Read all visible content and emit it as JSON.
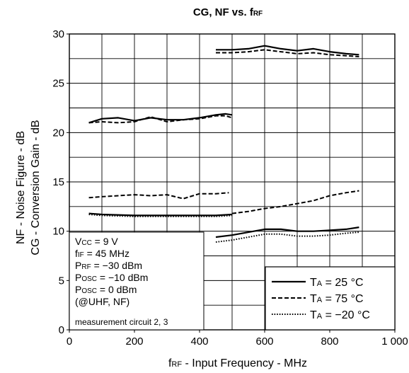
{
  "chart_data": {
    "type": "line",
    "title": "CG, NF vs. fRF",
    "title_parts": {
      "main": "CG, NF vs. f",
      "sub": "RF"
    },
    "xlabel_parts": {
      "pre": "f",
      "sub": "RF",
      "post": " -  Input Frequency  - MHz"
    },
    "ylabel_line1": "NF -  Noise Figure - dB",
    "ylabel_line2": "CG -  Conversion Gain - dB",
    "xlim": [
      0,
      1000
    ],
    "ylim": [
      0,
      30
    ],
    "x_ticks": [
      0,
      200,
      400,
      600,
      800,
      1000
    ],
    "x_tick_labels": [
      "0",
      "200",
      "400",
      "600",
      "800",
      "1 000"
    ],
    "y_ticks": [
      0,
      5,
      10,
      15,
      20,
      25,
      30
    ],
    "y_tick_labels": [
      "0",
      "5",
      "10",
      "15",
      "20",
      "25",
      "30"
    ],
    "grid": {
      "x_step": 100,
      "y_step": 2.5,
      "major_y_step": 5
    },
    "conditions": [
      {
        "pre": "V",
        "sub": "CC",
        "post": " = 9 V"
      },
      {
        "pre": "f",
        "sub": "IF",
        "post": " = 45 MHz"
      },
      {
        "pre": "P",
        "sub": "RF",
        "post": " = −30 dBm"
      },
      {
        "pre": "P",
        "sub": "OSC",
        "post": " = −10 dBm"
      },
      {
        "pre": "P",
        "sub": "OSC",
        "post": " = 0 dBm"
      },
      {
        "pre": "(@UHF, NF)",
        "sub": "",
        "post": ""
      }
    ],
    "conditions_footer": "measurement circuit 2, 3",
    "legend": {
      "placement": "bottom-right",
      "entries": [
        {
          "pre": "T",
          "sub": "A",
          "post": " = 25 °C",
          "style": "solid"
        },
        {
          "pre": "T",
          "sub": "A",
          "post": " = 75 °C",
          "style": "dashed"
        },
        {
          "pre": "T",
          "sub": "A",
          "post": " = −20 °C",
          "style": "dotted"
        }
      ]
    },
    "series": [
      {
        "group": "CG VHF",
        "style": "solid",
        "x": [
          60,
          100,
          150,
          200,
          250,
          300,
          350,
          400,
          450,
          480,
          500
        ],
        "y": [
          21.0,
          21.4,
          21.5,
          21.2,
          21.5,
          21.3,
          21.3,
          21.5,
          21.8,
          21.9,
          21.8
        ]
      },
      {
        "group": "CG VHF",
        "style": "dashed",
        "x": [
          60,
          100,
          150,
          200,
          250,
          300,
          350,
          400,
          450,
          480,
          500
        ],
        "y": [
          21.0,
          21.1,
          21.0,
          21.1,
          21.6,
          21.1,
          21.3,
          21.4,
          21.7,
          21.7,
          21.5
        ]
      },
      {
        "group": "CG UHF",
        "style": "solid",
        "x": [
          450,
          500,
          550,
          600,
          650,
          700,
          750,
          800,
          850,
          890
        ],
        "y": [
          28.4,
          28.4,
          28.5,
          28.8,
          28.5,
          28.3,
          28.5,
          28.2,
          28.0,
          27.9
        ]
      },
      {
        "group": "CG UHF",
        "style": "dashed",
        "x": [
          450,
          500,
          550,
          600,
          650,
          700,
          750,
          800,
          850,
          890
        ],
        "y": [
          28.1,
          28.1,
          28.2,
          28.4,
          28.2,
          28.0,
          28.1,
          27.9,
          27.8,
          27.7
        ]
      },
      {
        "group": "NF VHF",
        "style": "solid",
        "x": [
          60,
          100,
          200,
          300,
          400,
          450,
          500
        ],
        "y": [
          11.8,
          11.7,
          11.6,
          11.6,
          11.6,
          11.6,
          11.7
        ]
      },
      {
        "group": "NF VHF",
        "style": "dashed",
        "x": [
          60,
          100,
          200,
          250,
          300,
          350,
          400,
          450,
          490
        ],
        "y": [
          13.4,
          13.5,
          13.7,
          13.6,
          13.7,
          13.3,
          13.8,
          13.8,
          13.9
        ]
      },
      {
        "group": "NF VHF",
        "style": "dotted",
        "x": [
          60,
          100,
          200,
          300,
          400,
          450,
          500
        ],
        "y": [
          11.7,
          11.6,
          11.5,
          11.5,
          11.5,
          11.5,
          11.6
        ]
      },
      {
        "group": "NF VHF",
        "style": "dashed",
        "x": [
          500,
          550,
          600,
          650,
          700,
          750,
          800,
          850,
          890
        ],
        "y": [
          11.8,
          12.0,
          12.3,
          12.5,
          12.8,
          13.1,
          13.6,
          13.9,
          14.1
        ]
      },
      {
        "group": "NF UHF",
        "style": "solid",
        "x": [
          450,
          500,
          550,
          600,
          650,
          700,
          750,
          800,
          850,
          890
        ],
        "y": [
          9.4,
          9.6,
          9.9,
          10.2,
          10.2,
          10.0,
          10.0,
          10.1,
          10.2,
          10.4
        ]
      },
      {
        "group": "NF UHF",
        "style": "dotted",
        "x": [
          450,
          500,
          550,
          600,
          650,
          700,
          750,
          800,
          850,
          890
        ],
        "y": [
          8.9,
          9.1,
          9.4,
          9.7,
          9.7,
          9.5,
          9.5,
          9.6,
          9.8,
          9.9
        ]
      }
    ]
  }
}
